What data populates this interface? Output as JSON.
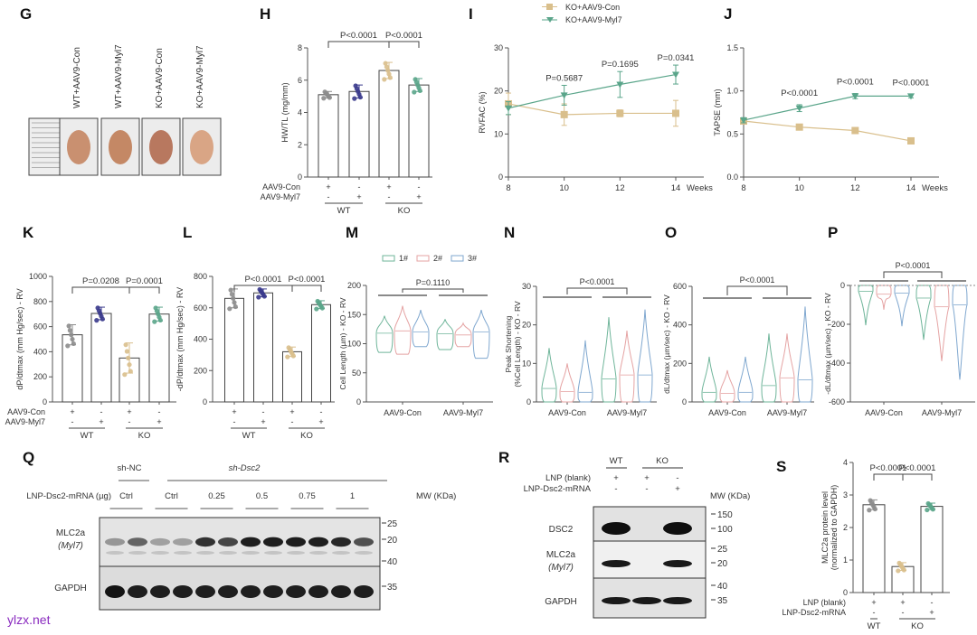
{
  "colors": {
    "wt_con": "#8c8c8c",
    "wt_myl7": "#3a3a8c",
    "ko_con": "#d9bf8c",
    "ko_myl7": "#5aa58a",
    "v1": "#6fb59a",
    "v2": "#e5a3a3",
    "v3": "#7fa7cf",
    "axis": "#555555"
  },
  "watermark": "ylzx.net",
  "chart_data": [
    {
      "panel": "G",
      "type": "image",
      "labels": [
        "WT+AAV9-Con",
        "WT+AAV9-Myl7",
        "KO+AAV9-Con",
        "KO+AAV9-Myl7"
      ]
    },
    {
      "panel": "H",
      "type": "bar",
      "ylabel": "HW/TL (mg/mm)",
      "ylim": [
        0,
        8
      ],
      "yticks": [
        "0",
        "2",
        "4",
        "6",
        "8"
      ],
      "categories": [
        "WT AAV9-Con",
        "WT AAV9-Myl7",
        "KO AAV9-Con",
        "KO AAV9-Myl7"
      ],
      "values": [
        5.1,
        5.3,
        6.6,
        5.7
      ],
      "errors": [
        0.2,
        0.4,
        0.5,
        0.4
      ],
      "pvalues": [
        "P<0.0001",
        "P<0.0001"
      ],
      "rows": [
        {
          "label": "AAV9-Con",
          "signs": [
            "+",
            "-",
            "+",
            "-"
          ]
        },
        {
          "label": "AAV9-Myl7",
          "signs": [
            "-",
            "+",
            "-",
            "+"
          ]
        }
      ],
      "groups": [
        "WT",
        "KO"
      ]
    },
    {
      "panel": "I",
      "type": "line",
      "ylabel": "RVFAC (%)",
      "ylim": [
        0,
        30
      ],
      "yticks": [
        "0",
        "10",
        "20",
        "30"
      ],
      "x": [
        8,
        10,
        12,
        14
      ],
      "xticks": [
        "8",
        "10",
        "12",
        "14"
      ],
      "xunit": "Weeks",
      "series": [
        {
          "name": "KO+AAV9-Con",
          "values": [
            17,
            14.5,
            14.8,
            14.8
          ],
          "errors": [
            2.5,
            2.5,
            0.8,
            3
          ]
        },
        {
          "name": "KO+AAV9-Myl7",
          "values": [
            16,
            19,
            21.5,
            23.8
          ],
          "errors": [
            1.5,
            2.3,
            3,
            2.2
          ]
        }
      ],
      "pvalues": [
        "P=0.5687",
        "P=0.1695",
        "P=0.0341"
      ]
    },
    {
      "panel": "J",
      "type": "line",
      "ylabel": "TAPSE (mm)",
      "ylim": [
        0,
        1.5
      ],
      "yticks": [
        "0.0",
        "0.5",
        "1.0",
        "1.5"
      ],
      "x": [
        8,
        10,
        12,
        14
      ],
      "xticks": [
        "8",
        "10",
        "12",
        "14"
      ],
      "xunit": "Weeks",
      "series": [
        {
          "name": "KO+AAV9-Con",
          "values": [
            0.65,
            0.58,
            0.54,
            0.42
          ],
          "errors": [
            0.02,
            0.02,
            0.02,
            0.02
          ]
        },
        {
          "name": "KO+AAV9-Myl7",
          "values": [
            0.66,
            0.8,
            0.94,
            0.94
          ],
          "errors": [
            0.03,
            0.04,
            0.03,
            0.02
          ]
        }
      ],
      "pvalues": [
        "P<0.0001",
        "P<0.0001",
        "P<0.0001"
      ]
    },
    {
      "panel": "K",
      "type": "bar",
      "ylabel": "dP/dtmax (mm Hg/sec) - RV",
      "ylim": [
        0,
        1000
      ],
      "yticks": [
        "0",
        "200",
        "400",
        "600",
        "800",
        "1000"
      ],
      "values": [
        535,
        705,
        350,
        700
      ],
      "errors": [
        80,
        50,
        120,
        55
      ],
      "pvalues": [
        "P=0.0208",
        "P=0.0001"
      ],
      "rows": [
        {
          "label": "AAV9-Con",
          "signs": [
            "+",
            "-",
            "+",
            "-"
          ]
        },
        {
          "label": "AAV9-Myl7",
          "signs": [
            "-",
            "+",
            "-",
            "+"
          ]
        }
      ],
      "groups": [
        "WT",
        "KO"
      ]
    },
    {
      "panel": "L",
      "type": "bar",
      "ylabel": "-dP/dtmax (mm Hg/sec) - RV",
      "ylim": [
        0,
        800
      ],
      "yticks": [
        "0",
        "200",
        "400",
        "600",
        "800"
      ],
      "values": [
        660,
        695,
        320,
        620
      ],
      "errors": [
        60,
        25,
        30,
        25
      ],
      "pvalues": [
        "P<0.0001",
        "P<0.0001"
      ],
      "rows": [
        {
          "label": "",
          "signs": [
            "+",
            "-",
            "+",
            "-"
          ]
        },
        {
          "label": "",
          "signs": [
            "-",
            "+",
            "-",
            "+"
          ]
        }
      ],
      "groups": [
        "WT",
        "KO"
      ]
    },
    {
      "panel": "M",
      "type": "violin",
      "ylabel": "Cell Length (µm) - KO - RV",
      "ylim": [
        0,
        200
      ],
      "yticks": [
        "0",
        "50",
        "100",
        "150",
        "200"
      ],
      "categories": [
        "AAV9-Con",
        "AAV9-Myl7"
      ],
      "legend": [
        "1#",
        "2#",
        "3#"
      ],
      "medians": [
        [
          118,
          122,
          120
        ],
        [
          117,
          115,
          120
        ]
      ],
      "ranges": [
        [
          [
            85,
            148
          ],
          [
            82,
            165
          ],
          [
            95,
            158
          ]
        ],
        [
          [
            90,
            142
          ],
          [
            95,
            135
          ],
          [
            75,
            158
          ]
        ]
      ],
      "pvalue": "P=0.1110"
    },
    {
      "panel": "N",
      "type": "violin",
      "ylabel": "Peak Shortening (%Cell Length) - KO - RV",
      "ylim": [
        0,
        30
      ],
      "yticks": [
        "0",
        "10",
        "20",
        "30"
      ],
      "categories": [
        "AAV9-Con",
        "AAV9-Myl7"
      ],
      "medians": [
        [
          3.5,
          2.7,
          2.5
        ],
        [
          6,
          7,
          7
        ]
      ],
      "ranges": [
        [
          [
            0,
            14
          ],
          [
            0,
            10
          ],
          [
            0,
            16
          ]
        ],
        [
          [
            0,
            22
          ],
          [
            0,
            18.5
          ],
          [
            0,
            24
          ]
        ]
      ],
      "pvalue": "P<0.0001"
    },
    {
      "panel": "O",
      "type": "violin",
      "ylabel": "dL/dtmax (µm/sec) - KO - RV",
      "ylim": [
        0,
        600
      ],
      "yticks": [
        "0",
        "200",
        "400",
        "600"
      ],
      "categories": [
        "AAV9-Con",
        "AAV9-Myl7"
      ],
      "medians": [
        [
          50,
          45,
          50
        ],
        [
          85,
          125,
          115
        ]
      ],
      "ranges": [
        [
          [
            0,
            235
          ],
          [
            0,
            165
          ],
          [
            0,
            235
          ]
        ],
        [
          [
            0,
            355
          ],
          [
            0,
            355
          ],
          [
            0,
            495
          ]
        ]
      ],
      "pvalue": "P<0.0001"
    },
    {
      "panel": "P",
      "type": "violin",
      "ylabel": "-dL/dtmax (µm/sec) - KO - RV",
      "ylim": [
        -600,
        0
      ],
      "yticks": [
        "-600",
        "-400",
        "-200",
        "0"
      ],
      "categories": [
        "AAV9-Con",
        "AAV9-Myl7"
      ],
      "medians": [
        [
          -30,
          -45,
          -40
        ],
        [
          -65,
          -110,
          -100
        ]
      ],
      "ranges": [
        [
          [
            -205,
            0
          ],
          [
            -125,
            0
          ],
          [
            -210,
            0
          ]
        ],
        [
          [
            -280,
            0
          ],
          [
            -390,
            0
          ],
          [
            -485,
            0
          ]
        ]
      ],
      "pvalue": "P<0.0001"
    },
    {
      "panel": "Q",
      "type": "blot",
      "header_left": "sh-NC",
      "header_right": "sh-Dsc2",
      "row_label": "LNP-Dsc2-mRNA (µg)",
      "doses": [
        "Ctrl",
        "Ctrl",
        "0.25",
        "0.5",
        "0.75",
        "1"
      ],
      "mw_title": "MW (KDa)",
      "blots": [
        {
          "label": "MLC2a",
          "sublabel": "(Myl7)",
          "markers": [
            "25",
            "20"
          ],
          "intensities": [
            0.35,
            0.6,
            0.3,
            0.3,
            0.85,
            0.75,
            0.95,
            0.95,
            0.95,
            0.95,
            0.9,
            0.7
          ]
        },
        {
          "label": "GAPDH",
          "sublabel": "",
          "markers": [
            "40",
            "35"
          ],
          "intensities": [
            1,
            0.95,
            0.95,
            0.95,
            0.95,
            0.95,
            0.95,
            0.95,
            0.95,
            0.95,
            0.95,
            0.95
          ]
        }
      ]
    },
    {
      "panel": "R",
      "type": "blot",
      "groups": [
        "WT",
        "KO"
      ],
      "rows": [
        {
          "label": "LNP (blank)",
          "signs": [
            "+",
            "+",
            "-"
          ]
        },
        {
          "label": "LNP-Dsc2-mRNA",
          "signs": [
            "-",
            "-",
            "+"
          ]
        }
      ],
      "mw_title": "MW (KDa)",
      "blots": [
        {
          "label": "DSC2",
          "sublabel": "",
          "markers": [
            "150",
            "100"
          ],
          "intensities": [
            1,
            0,
            1
          ]
        },
        {
          "label": "MLC2a",
          "sublabel": "(Myl7)",
          "markers": [
            "25",
            "20"
          ],
          "intensities": [
            0.95,
            0,
            0.95
          ]
        },
        {
          "label": "GAPDH",
          "sublabel": "",
          "markers": [
            "40",
            "35"
          ],
          "intensities": [
            0.95,
            0.95,
            0.95
          ]
        }
      ]
    },
    {
      "panel": "S",
      "type": "bar",
      "ylabel": "MLC2a protein level (normalized to GAPDH)",
      "ylim": [
        0,
        4
      ],
      "yticks": [
        "0",
        "1",
        "2",
        "3",
        "4"
      ],
      "values": [
        2.7,
        0.8,
        2.65
      ],
      "errors": [
        0.15,
        0.12,
        0.1
      ],
      "pvalues": [
        "P<0.0001",
        "P<0.0001"
      ],
      "rows": [
        {
          "label": "LNP (blank)",
          "signs": [
            "+",
            "+",
            "-"
          ]
        },
        {
          "label": "LNP-Dsc2-mRNA",
          "signs": [
            "-",
            "-",
            "+"
          ]
        }
      ],
      "groups": [
        "WT",
        "KO"
      ]
    }
  ]
}
